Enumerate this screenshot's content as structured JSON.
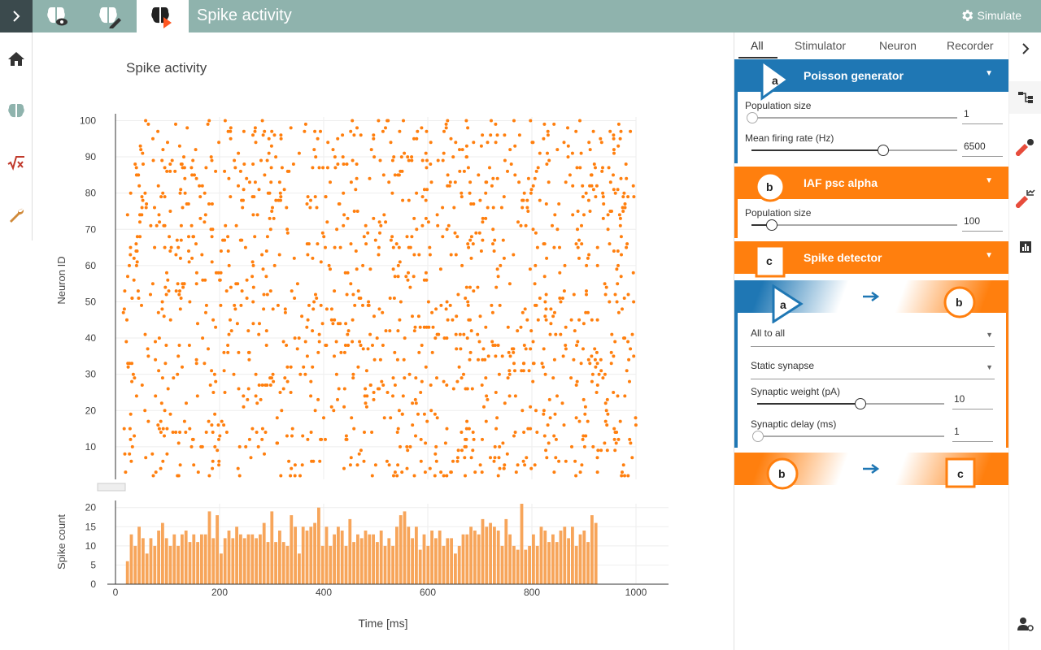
{
  "app": {
    "title": "Spike activity",
    "simulate_label": "Simulate"
  },
  "topbar": {
    "buttons": [
      {
        "name": "explore-network-icon"
      },
      {
        "name": "edit-network-icon"
      },
      {
        "name": "activity-explorer-icon"
      }
    ]
  },
  "leftnav": {
    "icons": [
      "home-icon",
      "brain-icon",
      "model-icon",
      "wrench-icon"
    ]
  },
  "chart_title": "Spike activity",
  "tabs": [
    "All",
    "Stimulator",
    "Neuron",
    "Recorder"
  ],
  "nodes": [
    {
      "label": "a",
      "title": "Poisson generator",
      "color": "#1f77b4",
      "params": [
        {
          "label": "Population size",
          "value": "1",
          "fraction": 0.0
        },
        {
          "label": "Mean firing rate (Hz)",
          "value": "6500",
          "fraction": 0.65
        }
      ]
    },
    {
      "label": "b",
      "title": "IAF psc alpha",
      "color": "#ff7f0e",
      "params": [
        {
          "label": "Population size",
          "value": "100",
          "fraction": 0.1
        }
      ]
    },
    {
      "label": "c",
      "title": "Spike detector",
      "color": "#ff7f0e",
      "params": []
    }
  ],
  "connections": [
    {
      "source": "a",
      "target": "b",
      "rule": "All to all",
      "synapse": "Static synapse",
      "params": [
        {
          "label": "Synaptic weight (pA)",
          "value": "10",
          "fraction": 0.55
        },
        {
          "label": "Synaptic delay (ms)",
          "value": "1",
          "fraction": 0.0
        }
      ]
    },
    {
      "source": "b",
      "target": "c"
    }
  ],
  "colors": {
    "spike": "#ff7f0e",
    "bar": "#f7a55a",
    "topbar": "#8fb3ad",
    "stimulator": "#1f77b4",
    "neuron": "#ff7f0e"
  },
  "chart_data": [
    {
      "type": "scatter",
      "ylabel": "Neuron ID",
      "xlim": [
        0,
        1000
      ],
      "ylim": [
        1,
        101
      ],
      "yticks": [
        10,
        20,
        30,
        40,
        50,
        60,
        70,
        80,
        90,
        100
      ],
      "grid": true,
      "point_count_estimate": 1400,
      "note_values": "dense uniformly distributed spike times for neurons 1–100 over 0–1000 ms"
    },
    {
      "type": "bar",
      "xlabel": "Time [ms]",
      "ylabel": "Spike count",
      "xlim": [
        0,
        1000
      ],
      "ylim": [
        0,
        21
      ],
      "xticks": [
        0,
        200,
        400,
        600,
        800,
        1000
      ],
      "yticks": [
        0,
        5,
        10,
        15,
        20
      ],
      "bin_width": 7.5,
      "x_start": 20,
      "values": [
        6,
        13,
        10,
        15,
        12,
        8,
        12,
        10,
        14,
        16,
        12,
        10,
        13,
        10,
        13,
        14,
        11,
        13,
        11,
        13,
        13,
        19,
        12,
        18,
        8,
        12,
        14,
        12,
        15,
        13,
        12,
        13,
        13,
        12,
        13,
        16,
        11,
        19,
        11,
        14,
        11,
        10,
        18,
        15,
        8,
        15,
        14,
        15,
        16,
        20,
        10,
        15,
        10,
        13,
        15,
        14,
        10,
        17,
        11,
        13,
        12,
        14,
        13,
        13,
        11,
        14,
        10,
        12,
        10,
        15,
        18,
        19,
        15,
        12,
        15,
        9,
        13,
        10,
        14,
        12,
        14,
        10,
        12,
        12,
        8,
        10,
        13,
        13,
        15,
        14,
        13,
        17,
        15,
        16,
        15,
        14,
        10,
        17,
        13,
        10,
        9,
        21,
        9,
        10,
        13,
        10,
        15,
        14,
        11,
        13,
        11,
        14,
        15,
        12,
        15,
        10,
        13,
        14,
        11,
        18,
        16
      ]
    }
  ]
}
